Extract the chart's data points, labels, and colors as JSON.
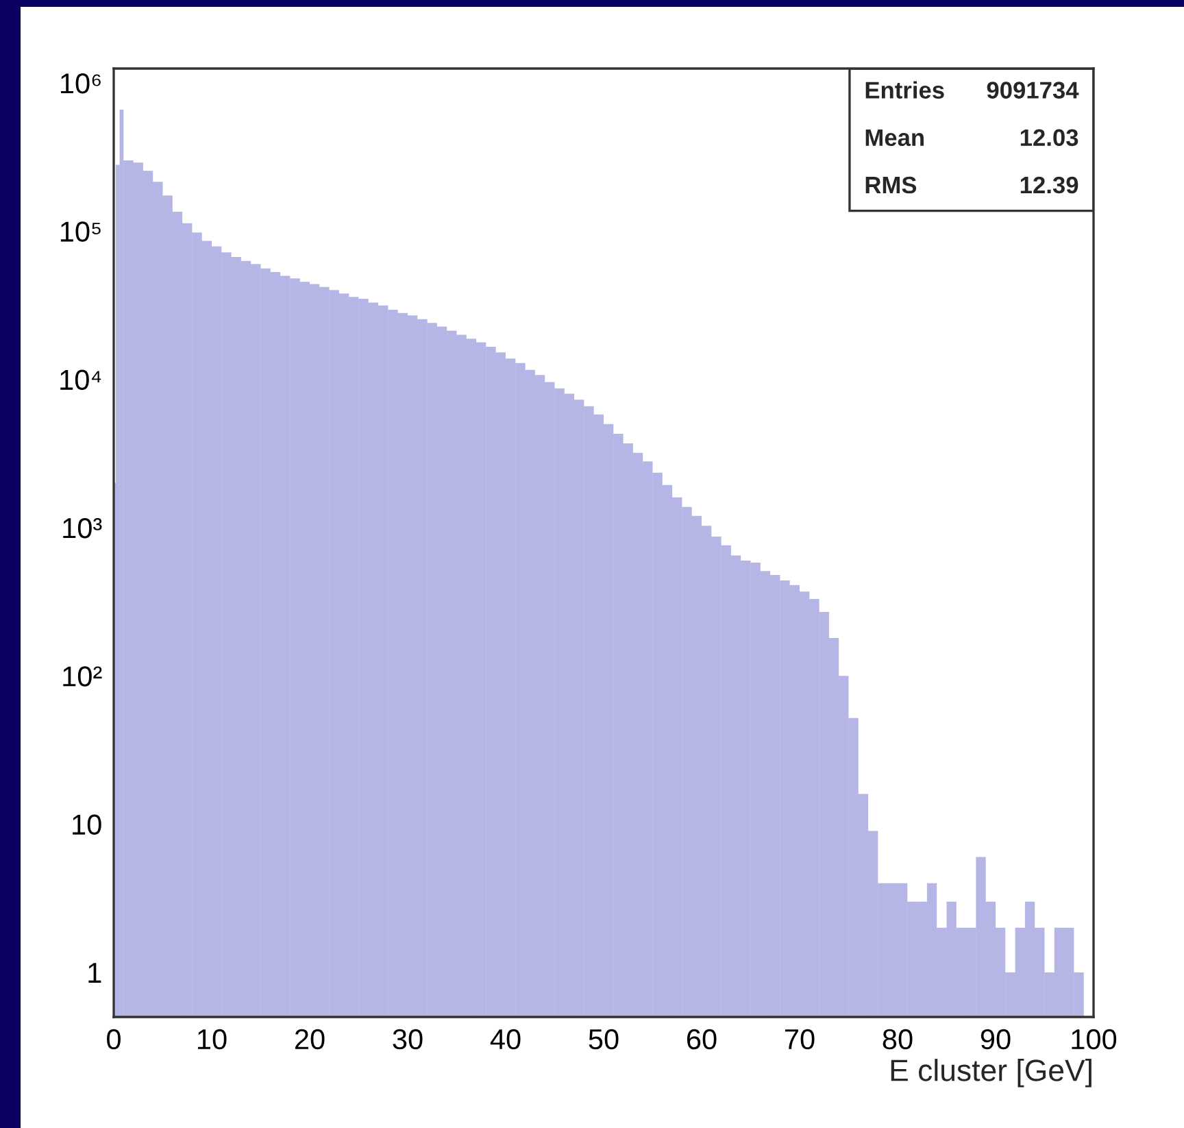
{
  "chart_data": {
    "type": "histogram",
    "xlabel": "E cluster [GeV]",
    "annotations": [
      "Entries 9091734",
      "Mean 12.03",
      "RMS 12.39"
    ],
    "color": "#2b2bb8",
    "log": true,
    "bins": [
      0,
      0.2,
      0.6,
      1,
      2,
      3,
      4,
      5,
      6,
      7,
      8,
      9,
      10,
      11,
      12,
      13,
      14,
      15,
      16,
      17,
      18,
      19,
      20,
      21,
      22,
      23,
      24,
      25,
      26,
      27,
      28,
      29,
      30,
      31,
      32,
      33,
      34,
      35,
      36,
      37,
      38,
      39,
      40,
      41,
      42,
      43,
      44,
      45,
      46,
      47,
      48,
      49,
      50,
      51,
      52,
      53,
      54,
      55,
      56,
      57,
      58,
      59,
      60,
      61,
      62,
      63,
      64,
      65,
      66,
      67,
      68,
      69,
      70,
      71,
      72,
      73,
      74,
      75,
      76,
      77,
      78,
      79,
      80,
      81,
      82,
      83,
      84,
      85,
      86,
      87,
      88,
      89,
      90,
      91,
      92,
      93,
      94,
      95,
      96,
      97,
      98,
      99
    ],
    "values": [
      2000,
      280000,
      660000,
      300000,
      290000,
      255000,
      215000,
      174000,
      135000,
      113000,
      98000,
      86000,
      79000,
      72000,
      67000,
      63000,
      60000,
      56000,
      53000,
      50000,
      48000,
      45500,
      44000,
      42000,
      40000,
      38000,
      36000,
      35000,
      33000,
      31500,
      29500,
      28000,
      27000,
      25500,
      24000,
      22700,
      21300,
      20000,
      18800,
      17800,
      16600,
      15200,
      13800,
      12900,
      11600,
      10700,
      9600,
      8700,
      8000,
      7300,
      6600,
      5800,
      5000,
      4300,
      3700,
      3200,
      2800,
      2350,
      1940,
      1600,
      1380,
      1200,
      1030,
      870,
      760,
      650,
      600,
      580,
      510,
      480,
      440,
      410,
      370,
      330,
      270,
      180,
      100,
      52,
      16,
      9,
      4,
      4,
      4,
      3,
      3,
      4,
      2,
      3,
      2,
      2,
      6,
      3,
      2,
      1,
      2,
      3,
      2,
      1,
      2,
      2,
      1
    ],
    "xlim": [
      0,
      100
    ],
    "ylim": [
      0.5,
      1250000
    ],
    "xticks": [
      0,
      10,
      20,
      30,
      40,
      50,
      60,
      70,
      80,
      90,
      100
    ],
    "yticks": [
      {
        "value": 1,
        "label": "1"
      },
      {
        "value": 10,
        "label": "10"
      },
      {
        "value": 100,
        "label": "10²"
      },
      {
        "value": 1000,
        "label": "10³"
      },
      {
        "value": 10000,
        "label": "10⁴"
      },
      {
        "value": 100000,
        "label": "10⁵"
      },
      {
        "value": 1000000,
        "label": "10⁶"
      }
    ]
  }
}
